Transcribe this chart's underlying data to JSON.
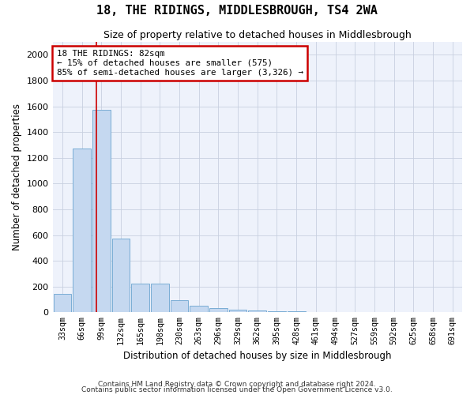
{
  "title": "18, THE RIDINGS, MIDDLESBROUGH, TS4 2WA",
  "subtitle": "Size of property relative to detached houses in Middlesbrough",
  "xlabel": "Distribution of detached houses by size in Middlesbrough",
  "ylabel": "Number of detached properties",
  "footnote1": "Contains HM Land Registry data © Crown copyright and database right 2024.",
  "footnote2": "Contains public sector information licensed under the Open Government Licence v3.0.",
  "bar_labels": [
    "33sqm",
    "66sqm",
    "99sqm",
    "132sqm",
    "165sqm",
    "198sqm",
    "230sqm",
    "263sqm",
    "296sqm",
    "329sqm",
    "362sqm",
    "395sqm",
    "428sqm",
    "461sqm",
    "494sqm",
    "527sqm",
    "559sqm",
    "592sqm",
    "625sqm",
    "658sqm",
    "691sqm"
  ],
  "bar_values": [
    140,
    1270,
    1570,
    570,
    220,
    220,
    95,
    50,
    30,
    20,
    15,
    10,
    5,
    3,
    2,
    1,
    1,
    1,
    1,
    1,
    1
  ],
  "bar_color": "#c5d8f0",
  "bar_edge_color": "#7aadd4",
  "grid_color": "#c8d0e0",
  "background_color": "#eef2fb",
  "property_line_x": 1.75,
  "property_line_color": "#cc0000",
  "annotation_line1": "18 THE RIDINGS: 82sqm",
  "annotation_line2": "← 15% of detached houses are smaller (575)",
  "annotation_line3": "85% of semi-detached houses are larger (3,326) →",
  "annotation_box_color": "#cc0000",
  "ylim": [
    0,
    2100
  ],
  "yticks": [
    0,
    200,
    400,
    600,
    800,
    1000,
    1200,
    1400,
    1600,
    1800,
    2000
  ]
}
